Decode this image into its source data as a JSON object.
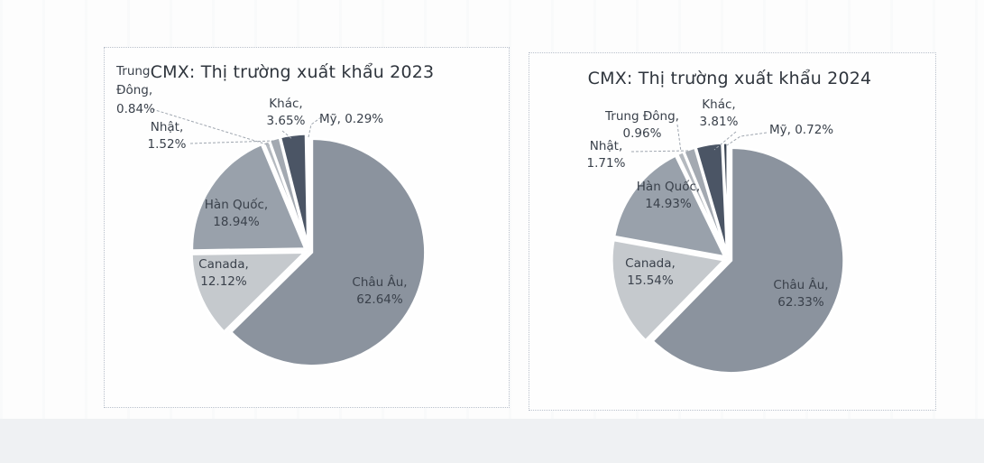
{
  "chart_data": [
    {
      "type": "pie",
      "title": "CMX: Thị trường xuất khẩu 2023",
      "categories": [
        "Châu Âu",
        "Canada",
        "Hàn Quốc",
        "Trung Đông",
        "Nhật",
        "Khác",
        "Mỹ"
      ],
      "values": [
        62.64,
        12.12,
        18.94,
        0.84,
        1.52,
        3.65,
        0.29
      ],
      "unit": "%",
      "start_angle_deg": 0,
      "direction": "clockwise",
      "legend_position": "none",
      "colors": [
        "#8b939e",
        "#c5c9cd",
        "#99a1ab",
        "#b4b9bf",
        "#a3a9b1",
        "#4b5565",
        "#3a4452"
      ],
      "labels": {
        "chau_au": "Châu Âu,\n62.64%",
        "canada": "Canada,\n12.12%",
        "han_quoc": "Hàn Quốc,\n18.94%",
        "trung_dong": "Trung\nĐông,\n0.84%",
        "nhat": "Nhật,\n1.52%",
        "khac": "Khác,\n3.65%",
        "my": "Mỹ, 0.29%"
      }
    },
    {
      "type": "pie",
      "title": "CMX: Thị trường xuất khẩu 2024",
      "categories": [
        "Châu Âu",
        "Canada",
        "Hàn Quốc",
        "Trung Đông",
        "Nhật",
        "Khác",
        "Mỹ"
      ],
      "values": [
        62.33,
        15.54,
        14.93,
        0.96,
        1.71,
        3.81,
        0.72
      ],
      "unit": "%",
      "start_angle_deg": 0,
      "direction": "clockwise",
      "legend_position": "none",
      "colors": [
        "#8b939e",
        "#c5c9cd",
        "#99a1ab",
        "#b4b9bf",
        "#a3a9b1",
        "#4b5565",
        "#3a4452"
      ],
      "labels": {
        "chau_au": "Châu Âu,\n62.33%",
        "canada": "Canada,\n15.54%",
        "han_quoc": "Hàn Quốc,\n14.93%",
        "trung_dong": "Trung Đông,\n0.96%",
        "nhat": "Nhật,\n1.71%",
        "khac": "Khác,\n3.81%",
        "my": "Mỹ, 0.72%"
      }
    }
  ]
}
